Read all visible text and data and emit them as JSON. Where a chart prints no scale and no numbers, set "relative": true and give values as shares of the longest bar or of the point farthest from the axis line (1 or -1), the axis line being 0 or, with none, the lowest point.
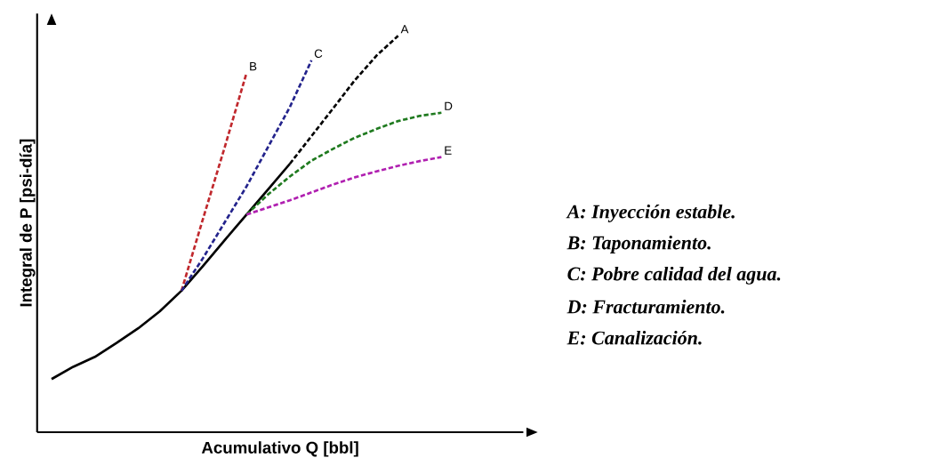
{
  "chart_data": {
    "type": "line",
    "relative": true,
    "xlabel": "Acumulativo Q [bbl]",
    "ylabel": "Integral de P [psi-día]",
    "marker": "none",
    "categories": [
      null,
      null,
      null,
      null,
      null,
      null,
      null,
      null,
      null,
      null,
      null,
      null,
      null,
      null,
      null,
      null,
      null,
      null,
      null
    ],
    "series": [
      {
        "color": "#000000",
        "line_style": "solid",
        "values": [
          0.134,
          0.165,
          0.19,
          0.225,
          0.262,
          0.305,
          0.357,
          0.42,
          0.485,
          0.549,
          0.613,
          0.677,
          null,
          null,
          null,
          null,
          null,
          null,
          null
        ]
      },
      {
        "name": "A",
        "color": "#000000",
        "line_style": "dashed",
        "values": [
          null,
          null,
          null,
          null,
          null,
          null,
          null,
          null,
          null,
          null,
          null,
          0.677,
          0.747,
          0.817,
          0.888,
          0.95,
          1.0,
          null,
          null
        ]
      },
      {
        "name": "B",
        "color": "#c0282d",
        "line_style": "dashed",
        "values": [
          null,
          null,
          null,
          null,
          null,
          null,
          0.357,
          0.54,
          0.72,
          0.906,
          null,
          null,
          null,
          null,
          null,
          null,
          null,
          null,
          null
        ]
      },
      {
        "name": "C",
        "color": "#23238c",
        "line_style": "dashed",
        "values": [
          null,
          null,
          null,
          null,
          null,
          null,
          0.357,
          0.44,
          0.53,
          0.62,
          0.72,
          0.82,
          0.938,
          null,
          null,
          null,
          null,
          null,
          null
        ]
      },
      {
        "name": "D",
        "color": "#1f7a1f",
        "line_style": "dashed",
        "values": [
          null,
          null,
          null,
          null,
          null,
          null,
          null,
          null,
          null,
          0.549,
          0.6,
          0.645,
          0.685,
          0.715,
          0.743,
          0.765,
          0.785,
          0.798,
          0.806
        ]
      },
      {
        "name": "E",
        "color": "#b020b0",
        "line_style": "dashed",
        "values": [
          null,
          null,
          null,
          null,
          null,
          null,
          null,
          null,
          null,
          0.549,
          0.567,
          0.585,
          0.605,
          0.625,
          0.643,
          0.658,
          0.672,
          0.684,
          0.694
        ]
      }
    ],
    "annotations": [
      "A: Inyección estable.",
      "B: Taponamiento.",
      "C: Pobre calidad del agua.",
      "D: Fracturamiento.",
      "E: Canalización."
    ]
  }
}
